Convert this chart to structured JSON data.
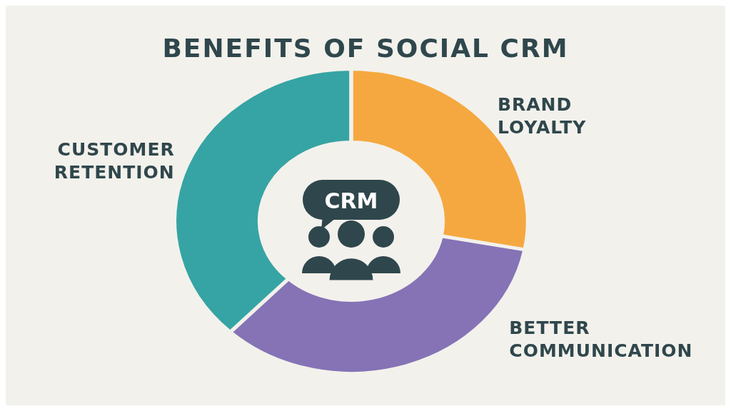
{
  "chart_data": {
    "type": "donut",
    "title": "BENEFITS OF SOCIAL CRM",
    "categories": [
      "BRAND LOYALTY",
      "BETTER COMMUNICATION",
      "CUSTOMER RETENTION"
    ],
    "values": [
      28,
      34,
      38
    ],
    "colors": [
      "#f5a83f",
      "#8573b6",
      "#36a4a4"
    ],
    "annotations": [
      "CRM"
    ]
  }
}
